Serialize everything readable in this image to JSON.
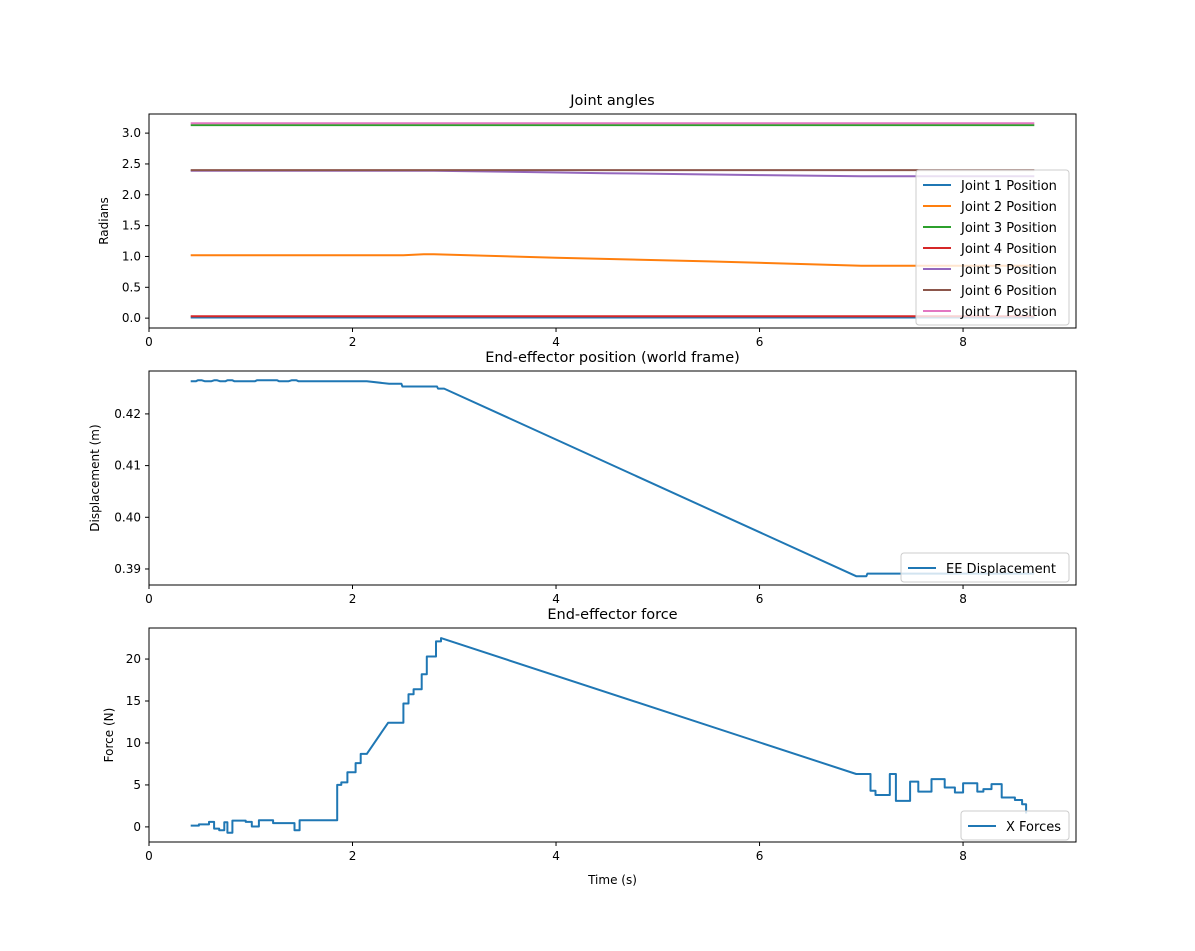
{
  "chart_data": [
    {
      "type": "line",
      "title": "Joint angles",
      "xlabel": "",
      "ylabel": "Radians",
      "xlim": [
        0,
        9.11
      ],
      "ylim": [
        -0.16,
        3.31
      ],
      "xticks": [
        0,
        2,
        4,
        6,
        8
      ],
      "yticks": [
        0.0,
        0.5,
        1.0,
        1.5,
        2.0,
        2.5,
        3.0
      ],
      "ytick_labels": [
        "0.0",
        "0.5",
        "1.0",
        "1.5",
        "2.0",
        "2.5",
        "3.0"
      ],
      "grid": false,
      "legend": "center-right",
      "series": [
        {
          "name": "Joint 1 Position",
          "color": "#1f77b4",
          "x": [
            0.41,
            8.7
          ],
          "y": [
            0.01,
            0.01
          ]
        },
        {
          "name": "Joint 2 Position",
          "color": "#ff7f0e",
          "x": [
            0.41,
            2.5,
            2.7,
            2.8,
            4.0,
            5.5,
            7.0,
            8.7
          ],
          "y": [
            1.02,
            1.02,
            1.035,
            1.035,
            0.98,
            0.92,
            0.85,
            0.85
          ]
        },
        {
          "name": "Joint 3 Position",
          "color": "#2ca02c",
          "x": [
            0.41,
            8.7
          ],
          "y": [
            3.13,
            3.13
          ]
        },
        {
          "name": "Joint 4 Position",
          "color": "#d62728",
          "x": [
            0.41,
            8.7
          ],
          "y": [
            0.03,
            0.03
          ]
        },
        {
          "name": "Joint 5 Position",
          "color": "#9467bd",
          "x": [
            0.41,
            2.8,
            4.5,
            6.0,
            7.0,
            8.7
          ],
          "y": [
            2.39,
            2.39,
            2.35,
            2.32,
            2.3,
            2.3
          ]
        },
        {
          "name": "Joint 6 Position",
          "color": "#8c564b",
          "x": [
            0.41,
            8.7
          ],
          "y": [
            2.4,
            2.4
          ]
        },
        {
          "name": "Joint 7 Position",
          "color": "#e377c2",
          "x": [
            0.41,
            8.7
          ],
          "y": [
            3.16,
            3.16
          ]
        }
      ]
    },
    {
      "type": "line",
      "title": "End-effector position (world frame)",
      "xlabel": "",
      "ylabel": "Displacement (m)",
      "xlim": [
        0,
        9.11
      ],
      "ylim": [
        0.3869,
        0.4283
      ],
      "xticks": [
        0,
        2,
        4,
        6,
        8
      ],
      "yticks": [
        0.39,
        0.4,
        0.41,
        0.42
      ],
      "ytick_labels": [
        "0.39",
        "0.40",
        "0.41",
        "0.42"
      ],
      "grid": false,
      "legend": "lower-right",
      "series": [
        {
          "name": "EE Displacement",
          "color": "#1f77b4",
          "x": [
            0.41,
            0.46,
            0.48,
            0.52,
            0.55,
            0.61,
            0.64,
            0.67,
            0.7,
            0.75,
            0.77,
            0.82,
            0.84,
            1.04,
            1.06,
            1.26,
            1.28,
            1.37,
            1.4,
            1.45,
            1.47,
            2.14,
            2.36,
            2.48,
            2.49,
            2.83,
            2.84,
            2.9,
            6.95,
            7.05,
            7.06,
            8.7
          ],
          "y": [
            0.4263,
            0.4263,
            0.4265,
            0.4265,
            0.4263,
            0.4263,
            0.4265,
            0.4265,
            0.4263,
            0.4263,
            0.4265,
            0.4265,
            0.4263,
            0.4263,
            0.4265,
            0.4265,
            0.4263,
            0.4263,
            0.4265,
            0.4265,
            0.4263,
            0.4263,
            0.42585,
            0.42585,
            0.4253,
            0.4253,
            0.4249,
            0.4249,
            0.3886,
            0.3886,
            0.3891,
            0.3891
          ]
        }
      ]
    },
    {
      "type": "line",
      "title": "End-effector force",
      "xlabel": "Time (s)",
      "ylabel": "Force (N)",
      "xlim": [
        0,
        9.11
      ],
      "ylim": [
        -1.8,
        23.7
      ],
      "xticks": [
        0,
        2,
        4,
        6,
        8
      ],
      "yticks": [
        0,
        5,
        10,
        15,
        20
      ],
      "ytick_labels": [
        "0",
        "5",
        "10",
        "15",
        "20"
      ],
      "grid": false,
      "legend": "lower-right",
      "series": [
        {
          "name": "X Forces",
          "color": "#1f77b4",
          "x": [
            0.41,
            0.49,
            0.49,
            0.59,
            0.59,
            0.64,
            0.64,
            0.69,
            0.69,
            0.74,
            0.74,
            0.77,
            0.77,
            0.82,
            0.82,
            0.95,
            0.95,
            1.01,
            1.01,
            1.08,
            1.08,
            1.22,
            1.22,
            1.43,
            1.43,
            1.48,
            1.48,
            1.85,
            1.85,
            1.89,
            1.89,
            1.95,
            1.95,
            2.03,
            2.03,
            2.08,
            2.08,
            2.14,
            2.35,
            2.5,
            2.5,
            2.55,
            2.55,
            2.6,
            2.6,
            2.68,
            2.68,
            2.73,
            2.73,
            2.82,
            2.82,
            2.87,
            2.87,
            6.95,
            7.09,
            7.09,
            7.14,
            7.14,
            7.28,
            7.28,
            7.34,
            7.34,
            7.48,
            7.48,
            7.56,
            7.56,
            7.69,
            7.69,
            7.82,
            7.82,
            7.92,
            7.92,
            8.0,
            8.0,
            8.14,
            8.14,
            8.2,
            8.2,
            8.28,
            8.28,
            8.38,
            8.38,
            8.51,
            8.51,
            8.58,
            8.58,
            8.62,
            8.62
          ],
          "y": [
            0.15,
            0.15,
            0.3,
            0.3,
            0.6,
            0.6,
            -0.2,
            -0.2,
            -0.4,
            -0.4,
            0.55,
            0.55,
            -0.7,
            -0.7,
            0.75,
            0.75,
            0.6,
            0.6,
            0.05,
            0.05,
            0.8,
            0.8,
            0.45,
            0.45,
            -0.4,
            -0.4,
            0.8,
            0.8,
            5.0,
            5.0,
            5.3,
            5.3,
            6.5,
            6.5,
            7.6,
            7.6,
            8.7,
            8.7,
            12.4,
            12.4,
            14.7,
            14.7,
            15.8,
            15.8,
            16.4,
            16.4,
            18.2,
            18.2,
            20.3,
            20.3,
            22.1,
            22.1,
            22.5,
            6.3,
            6.3,
            4.3,
            4.3,
            3.8,
            3.8,
            6.3,
            6.3,
            3.1,
            3.1,
            5.4,
            5.4,
            4.2,
            4.2,
            5.7,
            5.7,
            4.7,
            4.7,
            4.1,
            4.1,
            5.2,
            5.2,
            4.2,
            4.2,
            4.5,
            4.5,
            5.1,
            5.1,
            3.5,
            3.5,
            3.2,
            3.2,
            2.7,
            2.7,
            1.6
          ]
        }
      ]
    }
  ]
}
